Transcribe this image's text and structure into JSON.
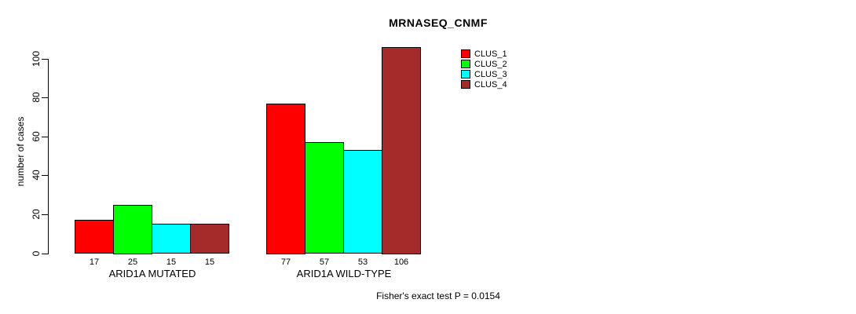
{
  "chart_data": {
    "type": "bar",
    "title": "MRNASEQ_CNMF",
    "ylabel": "number of cases",
    "xlabel": "",
    "categories": [
      "ARID1A MUTATED",
      "ARID1A WILD-TYPE"
    ],
    "series": [
      {
        "name": "CLUS_1",
        "color": "#ff0000",
        "values": [
          17,
          77
        ]
      },
      {
        "name": "CLUS_2",
        "color": "#00ff00",
        "values": [
          25,
          57
        ]
      },
      {
        "name": "CLUS_3",
        "color": "#00ffff",
        "values": [
          15,
          53
        ]
      },
      {
        "name": "CLUS_4",
        "color": "#a52a2a",
        "values": [
          15,
          106
        ]
      }
    ],
    "yticks": [
      0,
      20,
      40,
      60,
      80,
      100
    ],
    "ylim": [
      0,
      106
    ],
    "grid": false,
    "bar_value_labels_shown": true,
    "legend_position": "top-right",
    "legend_entries": [
      "CLUS_1",
      "CLUS_2",
      "CLUS_3",
      "CLUS_4"
    ],
    "annotation": "Fisher's exact test P = 0.0154",
    "colors": {
      "axis": "#000000",
      "text": "#000000",
      "background": "#ffffff"
    }
  }
}
